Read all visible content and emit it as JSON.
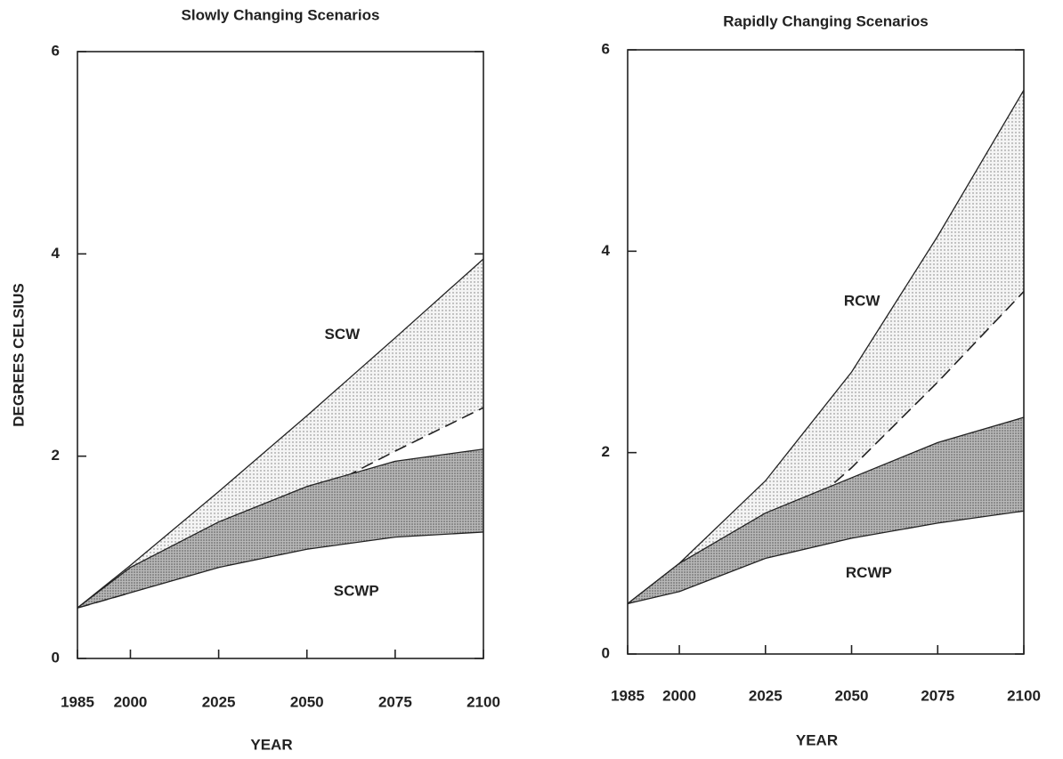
{
  "chart_data": [
    {
      "type": "band",
      "title": "Slowly Changing Scenarios",
      "xlabel": "YEAR",
      "ylabel": "DEGREES CELSIUS",
      "x": [
        1985,
        2000,
        2025,
        2050,
        2075,
        2100
      ],
      "series": [
        {
          "name": "SCW",
          "upper": [
            0.5,
            0.92,
            1.65,
            2.4,
            3.17,
            3.95
          ],
          "lower": [
            0.5,
            0.65,
            1.1,
            1.6,
            2.05,
            2.48
          ]
        },
        {
          "name": "SCWP",
          "upper": [
            0.5,
            0.9,
            1.35,
            1.7,
            1.95,
            2.07
          ],
          "lower": [
            0.5,
            0.65,
            0.9,
            1.08,
            1.2,
            1.25
          ]
        }
      ],
      "xlim": [
        1985,
        2100
      ],
      "ylim": [
        0,
        6
      ],
      "xticks": [
        1985,
        2000,
        2025,
        2050,
        2075,
        2100
      ],
      "yticks": [
        0,
        2,
        4,
        6
      ]
    },
    {
      "type": "band",
      "title": "Rapidly Changing Scenarios",
      "xlabel": "YEAR",
      "x": [
        1985,
        2000,
        2025,
        2050,
        2075,
        2100
      ],
      "series": [
        {
          "name": "RCW",
          "upper": [
            0.5,
            0.9,
            1.72,
            2.8,
            4.15,
            5.6
          ],
          "lower": [
            0.5,
            0.65,
            1.1,
            1.85,
            2.7,
            3.6
          ]
        },
        {
          "name": "RCWP",
          "upper": [
            0.5,
            0.9,
            1.4,
            1.75,
            2.1,
            2.35
          ],
          "lower": [
            0.5,
            0.62,
            0.95,
            1.15,
            1.3,
            1.42
          ]
        }
      ],
      "xlim": [
        1985,
        2100
      ],
      "ylim": [
        0,
        6
      ],
      "xticks": [
        1985,
        2000,
        2025,
        2050,
        2075,
        2100
      ],
      "yticks": [
        0,
        2,
        4,
        6
      ]
    }
  ]
}
